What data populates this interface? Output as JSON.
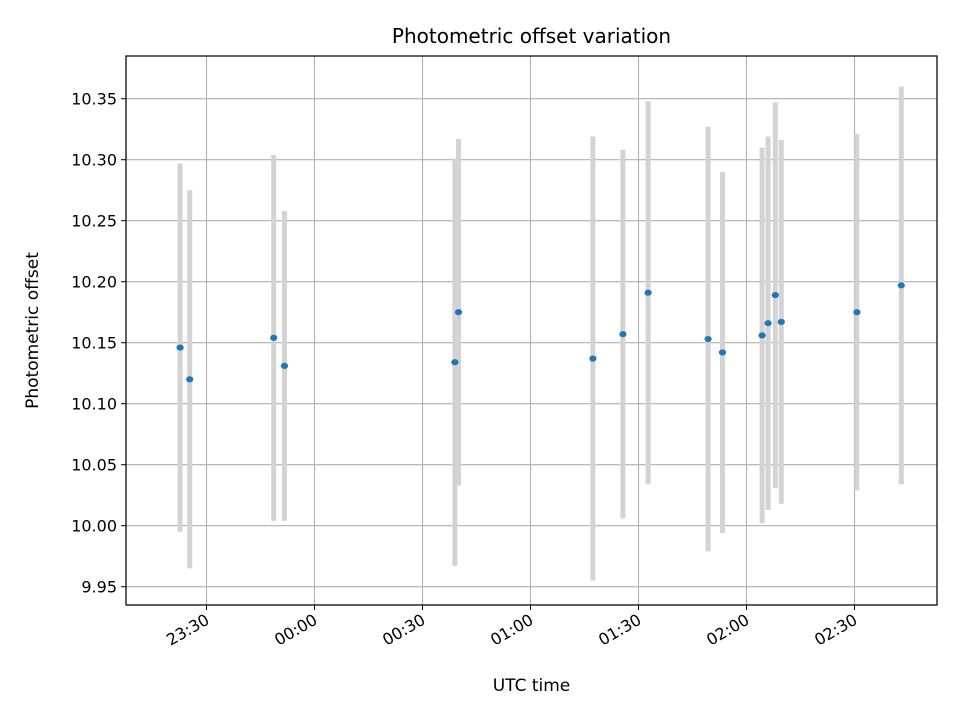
{
  "chart_data": {
    "type": "scatter",
    "title": "Photometric offset variation",
    "xlabel": "UTC time",
    "ylabel": "Photometric offset",
    "x_ticks": [
      "23:30",
      "00:00",
      "00:30",
      "01:00",
      "01:30",
      "02:00",
      "02:30"
    ],
    "x_tick_labels_rotated": true,
    "y_ticks": [
      "9.95",
      "10.00",
      "10.05",
      "10.10",
      "10.15",
      "10.20",
      "10.25",
      "10.30",
      "10.35"
    ],
    "ylim": [
      9.935,
      10.385
    ],
    "grid": true,
    "marker_color": "#1f77b4",
    "errorbar_color": "#d3d3d3",
    "points": [
      {
        "time": "23:22:40",
        "y": 10.146,
        "err": 0.151
      },
      {
        "time": "23:25:20",
        "y": 10.12,
        "err": 0.155
      },
      {
        "time": "23:48:40",
        "y": 10.154,
        "err": 0.15
      },
      {
        "time": "23:51:40",
        "y": 10.131,
        "err": 0.127
      },
      {
        "time": "00:39:00",
        "y": 10.134,
        "err": 0.167
      },
      {
        "time": "00:40:00",
        "y": 10.175,
        "err": 0.142
      },
      {
        "time": "01:17:20",
        "y": 10.137,
        "err": 0.182
      },
      {
        "time": "01:25:40",
        "y": 10.157,
        "err": 0.151
      },
      {
        "time": "01:32:40",
        "y": 10.191,
        "err": 0.157
      },
      {
        "time": "01:49:20",
        "y": 10.153,
        "err": 0.174
      },
      {
        "time": "01:53:20",
        "y": 10.142,
        "err": 0.148
      },
      {
        "time": "02:04:20",
        "y": 10.156,
        "err": 0.154
      },
      {
        "time": "02:06:00",
        "y": 10.166,
        "err": 0.153
      },
      {
        "time": "02:08:00",
        "y": 10.189,
        "err": 0.158
      },
      {
        "time": "02:09:40",
        "y": 10.167,
        "err": 0.149
      },
      {
        "time": "02:30:40",
        "y": 10.175,
        "err": 0.146
      },
      {
        "time": "02:43:00",
        "y": 10.197,
        "err": 0.163
      }
    ]
  }
}
